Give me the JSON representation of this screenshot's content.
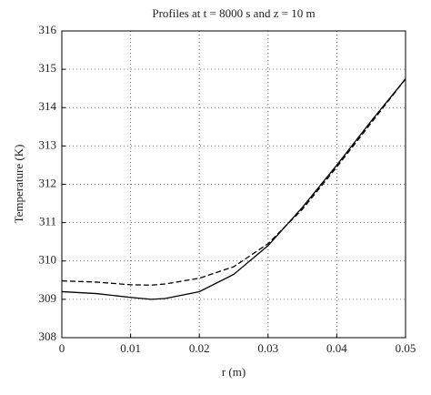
{
  "chart_data": {
    "type": "line",
    "title": "Profiles at t = 8000 s and z = 10 m",
    "x_label": "r (m)",
    "y_label": "Temperature (K)",
    "x": [
      0,
      0.005,
      0.01,
      0.013,
      0.015,
      0.02,
      0.025,
      0.03,
      0.035,
      0.04,
      0.045,
      0.05
    ],
    "series": [
      {
        "color": "#000000",
        "dash": "solid",
        "values": [
          309.2,
          309.15,
          309.05,
          309.0,
          309.02,
          309.2,
          309.65,
          310.4,
          311.4,
          312.5,
          313.65,
          314.75
        ]
      },
      {
        "color": "#000000",
        "dash": "dashed",
        "values": [
          309.48,
          309.45,
          309.38,
          309.37,
          309.4,
          309.55,
          309.85,
          310.45,
          311.35,
          312.45,
          313.6,
          314.75
        ]
      }
    ],
    "xlim": [
      0,
      0.05
    ],
    "xticks": [
      0,
      0.01,
      0.02,
      0.03,
      0.04,
      0.05
    ],
    "ylim": [
      308,
      316
    ],
    "yticks": [
      308,
      309,
      310,
      311,
      312,
      313,
      314,
      315,
      316
    ],
    "grid": true
  }
}
